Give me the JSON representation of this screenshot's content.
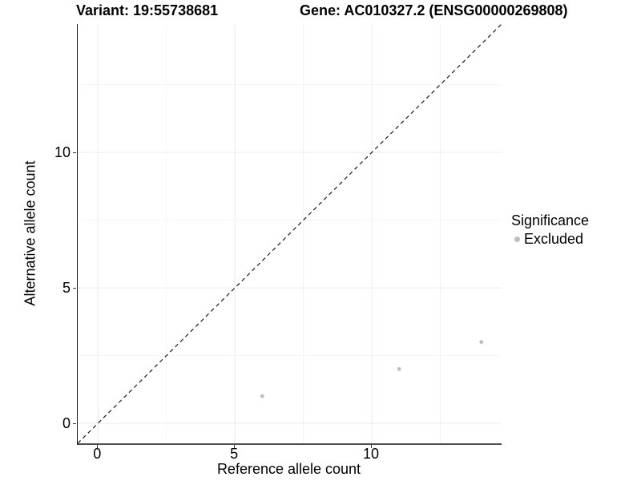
{
  "chart_data": {
    "type": "scatter",
    "title_left": "Variant: 19:55738681",
    "title_right": "Gene: AC010327.2 (ENSG00000269808)",
    "xlabel": "Reference allele count",
    "ylabel": "Alternative allele count",
    "xlim": [
      -0.74,
      14.74
    ],
    "ylim": [
      -0.74,
      14.74
    ],
    "x_major_ticks": [
      0,
      5,
      10
    ],
    "y_major_ticks": [
      0,
      5,
      10
    ],
    "x_minor_ticks": [
      2.5,
      7.5,
      12.5
    ],
    "y_minor_ticks": [
      2.5,
      7.5,
      12.5
    ],
    "grid": true,
    "identity_line": {
      "style": "dashed",
      "color": "#1a1a1a",
      "from_xy": [
        -0.74,
        -0.74
      ],
      "to_xy": [
        14.74,
        14.74
      ]
    },
    "series": [
      {
        "name": "Excluded",
        "color": "#bebebe",
        "point_radius": 2.4,
        "points": [
          {
            "x": 6,
            "y": 1
          },
          {
            "x": 11,
            "y": 2
          },
          {
            "x": 14,
            "y": 3
          }
        ]
      }
    ],
    "legend": {
      "position": "right",
      "title": "Significance",
      "items": [
        {
          "label": "Excluded",
          "color": "#bebebe"
        }
      ]
    },
    "colors": {
      "grid_major": "#ebebeb",
      "grid_minor": "#f3f3f3",
      "axis_line": "#4d4d4d",
      "text": "#000000"
    }
  }
}
